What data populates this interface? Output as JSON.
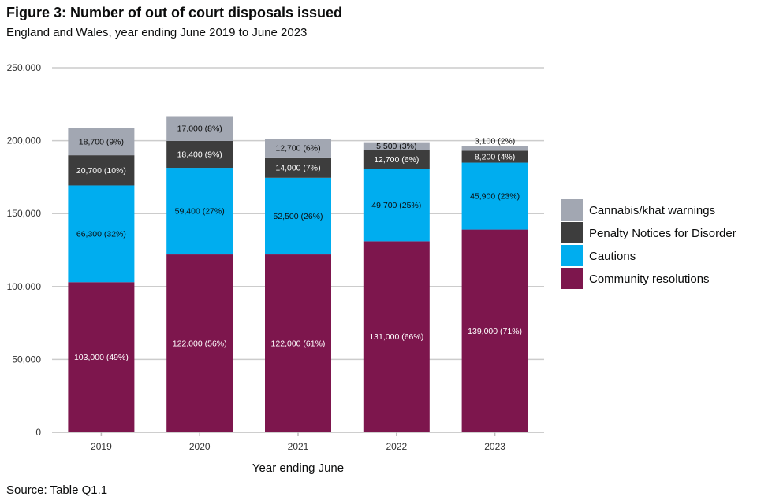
{
  "header": {
    "title": "Figure 3: Number of out of court disposals issued",
    "subtitle": "England and Wales, year ending June 2019 to June 2023"
  },
  "footer": {
    "source": "Source: Table Q1.1"
  },
  "chart_data": {
    "type": "bar",
    "stacked": true,
    "categories": [
      "2019",
      "2020",
      "2021",
      "2022",
      "2023"
    ],
    "xlabel": "Year ending June",
    "ylabel": "",
    "ylim": [
      0,
      250000
    ],
    "yticks": [
      0,
      50000,
      100000,
      150000,
      200000,
      250000
    ],
    "ytick_labels": [
      "0",
      "50,000",
      "100,000",
      "150,000",
      "200,000",
      "250,000"
    ],
    "grid": true,
    "legend_position": "right",
    "series": [
      {
        "name": "Community resolutions",
        "color": "#7d164d",
        "label_color": "#ffffff",
        "values": [
          103000,
          122000,
          122000,
          131000,
          139000
        ],
        "labels": [
          "103,000 (49%)",
          "122,000 (56%)",
          "122,000 (61%)",
          "131,000 (66%)",
          "139,000 (71%)"
        ]
      },
      {
        "name": "Cautions",
        "color": "#00adef",
        "label_color": "#0b0c0c",
        "values": [
          66300,
          59400,
          52500,
          49700,
          45900
        ],
        "labels": [
          "66,300 (32%)",
          "59,400 (27%)",
          "52,500 (26%)",
          "49,700 (25%)",
          "45,900 (23%)"
        ]
      },
      {
        "name": "Penalty Notices for Disorder",
        "color": "#3d3d3d",
        "label_color": "#ffffff",
        "values": [
          20700,
          18400,
          14000,
          12700,
          8200
        ],
        "labels": [
          "20,700 (10%)",
          "18,400 (9%)",
          "14,000 (7%)",
          "12,700 (6%)",
          "8,200 (4%)"
        ]
      },
      {
        "name": "Cannabis/khat warnings",
        "color": "#a2a7b2",
        "label_color": "#0b0c0c",
        "values": [
          18700,
          17000,
          12700,
          5500,
          3100
        ],
        "labels": [
          "18,700 (9%)",
          "17,000 (8%)",
          "12,700 (6%)",
          "5,500 (3%)",
          "3,100 (2%)"
        ]
      }
    ]
  }
}
